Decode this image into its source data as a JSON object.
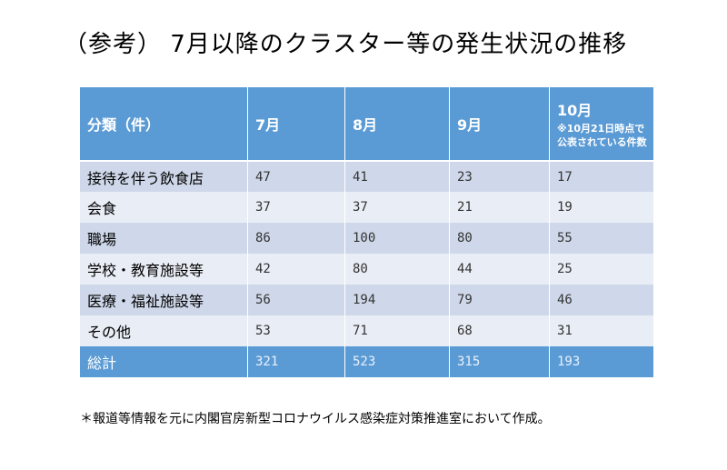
{
  "title": "（参考） 7月以降のクラスター等の発生状況の推移",
  "chart_data": {
    "type": "table",
    "columns": [
      "分類（件）",
      "7月",
      "8月",
      "9月",
      "10月"
    ],
    "column_note": "※10月21日時点で公表されている件数",
    "rows": [
      {
        "category": "接待を伴う飲食店",
        "values": [
          47,
          41,
          23,
          17
        ]
      },
      {
        "category": "会食",
        "values": [
          37,
          37,
          21,
          19
        ]
      },
      {
        "category": "職場",
        "values": [
          86,
          100,
          80,
          55
        ]
      },
      {
        "category": "学校・教育施設等",
        "values": [
          42,
          80,
          44,
          25
        ]
      },
      {
        "category": "医療・福祉施設等",
        "values": [
          56,
          194,
          79,
          46
        ]
      },
      {
        "category": "その他",
        "values": [
          53,
          71,
          68,
          31
        ]
      }
    ],
    "total": {
      "category": "総計",
      "values": [
        321,
        523,
        315,
        193
      ]
    }
  },
  "footnote": "＊報道等情報を元に内閣官房新型コロナウイルス感染症対策推進室において作成。",
  "colors": {
    "header": "#5b9bd5",
    "row_dark": "#cfd8ea",
    "row_light": "#e9edf5"
  }
}
